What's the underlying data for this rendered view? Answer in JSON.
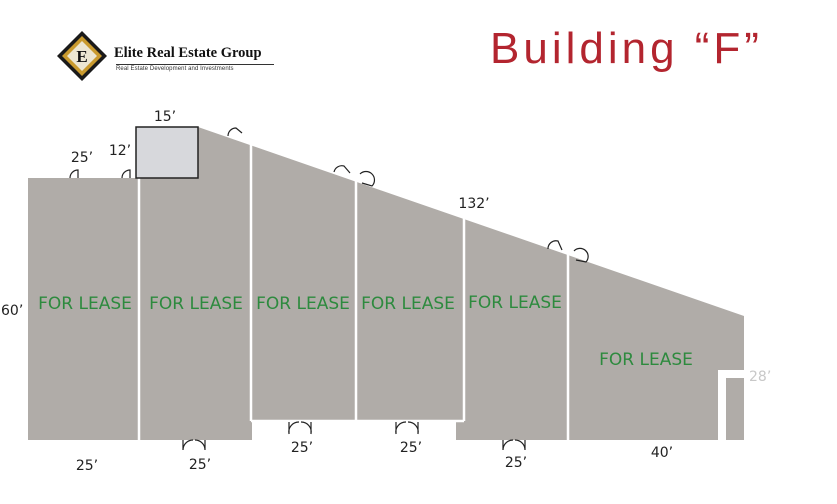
{
  "logo": {
    "name": "Elite Real Estate Group",
    "tagline": "Real Estate Development and Investments",
    "badge_letter": "E"
  },
  "title": "Building “F”",
  "units": [
    {
      "label": "FOR LEASE"
    },
    {
      "label": "FOR LEASE"
    },
    {
      "label": "FOR LEASE"
    },
    {
      "label": "FOR LEASE"
    },
    {
      "label": "FOR LEASE"
    },
    {
      "label": "FOR LEASE"
    }
  ],
  "dimensions": {
    "top_box_width": "15’",
    "top_box_height": "12’",
    "top_left_width": "25’",
    "left_depth": "60’",
    "slope_length": "132’",
    "right_depth": "28’",
    "bottom_1": "25’",
    "bottom_2": "25’",
    "bottom_3": "25’",
    "bottom_4": "25’",
    "bottom_5": "25’",
    "bottom_6": "40’"
  },
  "colors": {
    "building_fill": "#b0aca8",
    "box_fill": "#d7d8dc",
    "title_color": "#b3252f",
    "lease_text": "#2d8a3e"
  }
}
